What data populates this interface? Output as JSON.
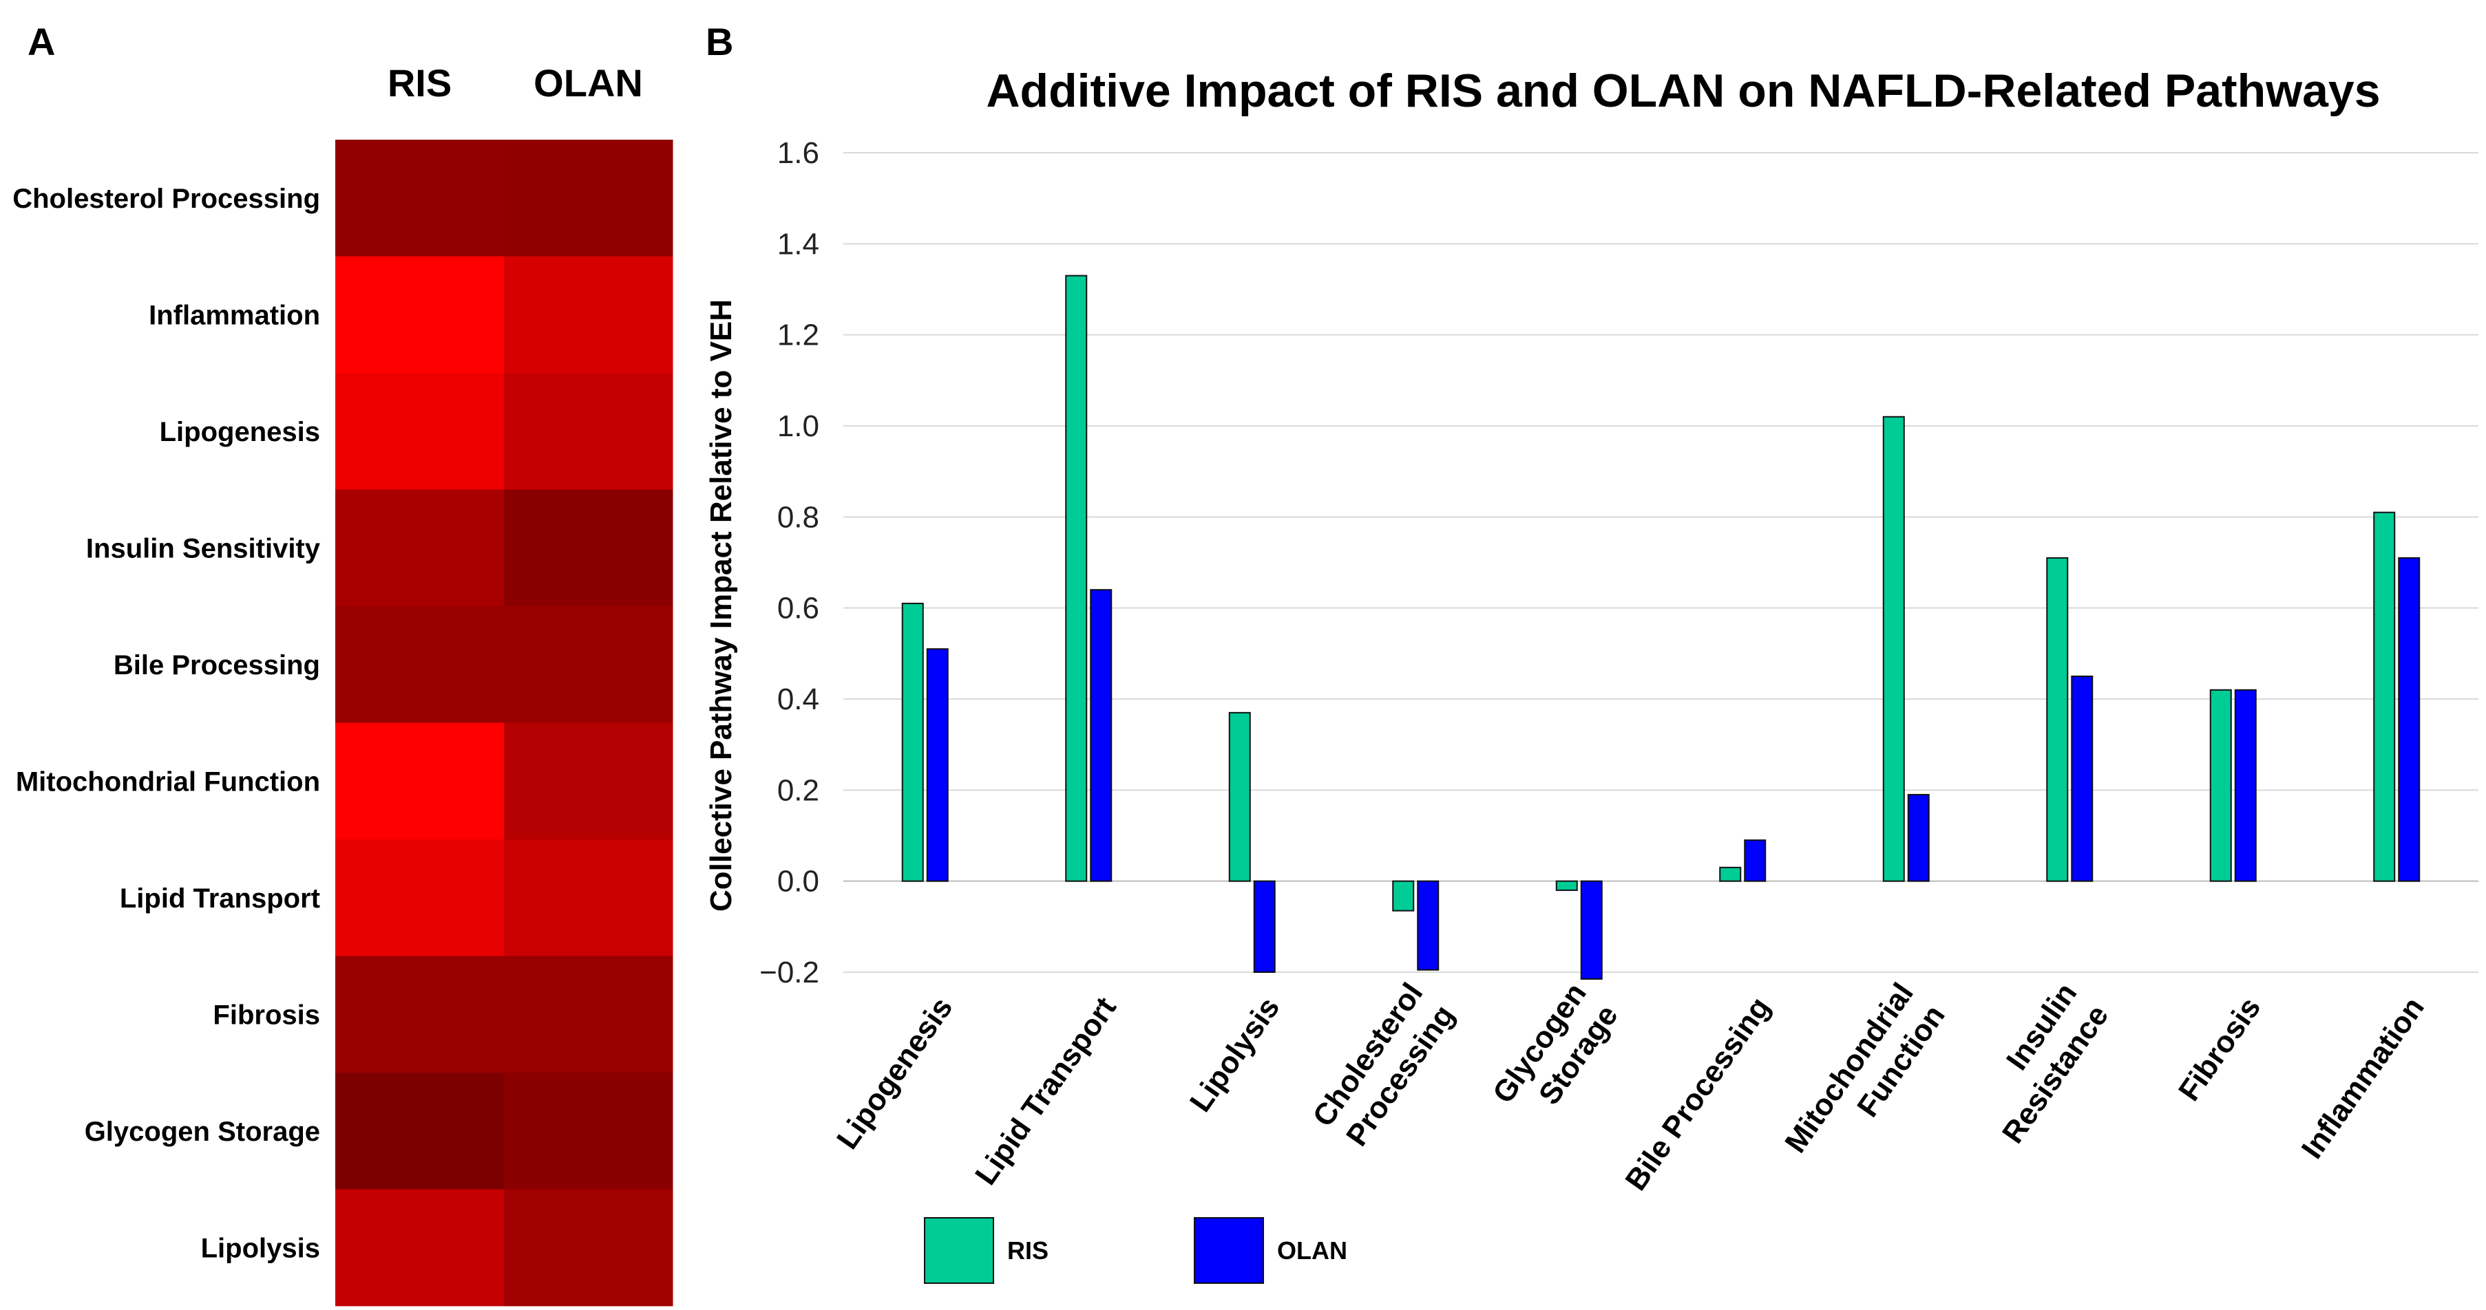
{
  "panels": {
    "a_label": "A",
    "b_label": "B"
  },
  "heatmap": {
    "columns": [
      "RIS",
      "OLAN"
    ],
    "rows": [
      {
        "label": "Cholesterol Processing",
        "colors": [
          "#920000",
          "#900000"
        ]
      },
      {
        "label": "Inflammation",
        "colors": [
          "#ff0000",
          "#d70000"
        ]
      },
      {
        "label": "Lipogenesis",
        "colors": [
          "#ee0000",
          "#c50000"
        ]
      },
      {
        "label": "Insulin Sensitivity",
        "colors": [
          "#a80000",
          "#8a0000"
        ]
      },
      {
        "label": "Bile Processing",
        "colors": [
          "#990000",
          "#9a0000"
        ]
      },
      {
        "label": "Mitochondrial Function",
        "colors": [
          "#ff0000",
          "#b40000"
        ]
      },
      {
        "label": "Lipid Transport",
        "colors": [
          "#e90000",
          "#c80000"
        ]
      },
      {
        "label": "Fibrosis",
        "colors": [
          "#9a0000",
          "#990000"
        ]
      },
      {
        "label": "Glycogen Storage",
        "colors": [
          "#7c0000",
          "#8a0000"
        ]
      },
      {
        "label": "Lipolysis",
        "colors": [
          "#c40000",
          "#a00000"
        ]
      }
    ]
  },
  "chart_data": {
    "type": "bar",
    "title": "Additive Impact of RIS and OLAN on NAFLD-Related Pathways",
    "xlabel": "",
    "ylabel": "Collective Pathway Impact Relative to VEH",
    "ylim": [
      -0.2,
      1.6
    ],
    "yticks": [
      -0.2,
      0.0,
      0.2,
      0.4,
      0.6,
      0.8,
      1.0,
      1.2,
      1.4,
      1.6
    ],
    "ytick_labels": [
      "−0.2",
      "0.0",
      "0.2",
      "0.4",
      "0.6",
      "0.8",
      "1.0",
      "1.2",
      "1.4",
      "1.6"
    ],
    "grid": true,
    "categories": [
      [
        "Lipogenesis"
      ],
      [
        "Lipid Transport"
      ],
      [
        "Lipolysis"
      ],
      [
        "Cholesterol",
        "Processing"
      ],
      [
        "Glycogen",
        "Storage"
      ],
      [
        "Bile Processing"
      ],
      [
        "Mitochondrial",
        "Function"
      ],
      [
        "Insulin",
        "Resistance"
      ],
      [
        "Fibrosis"
      ],
      [
        "Inflammation"
      ]
    ],
    "series": [
      {
        "name": "RIS",
        "color": "#00cc96",
        "values": [
          0.61,
          1.33,
          0.37,
          -0.065,
          -0.02,
          0.03,
          1.02,
          0.71,
          0.42,
          0.81
        ]
      },
      {
        "name": "OLAN",
        "color": "#0000ff",
        "values": [
          0.51,
          0.64,
          -0.2,
          -0.195,
          -0.215,
          0.09,
          0.19,
          0.45,
          0.42,
          0.71
        ]
      }
    ],
    "legend": "bottom-left"
  }
}
